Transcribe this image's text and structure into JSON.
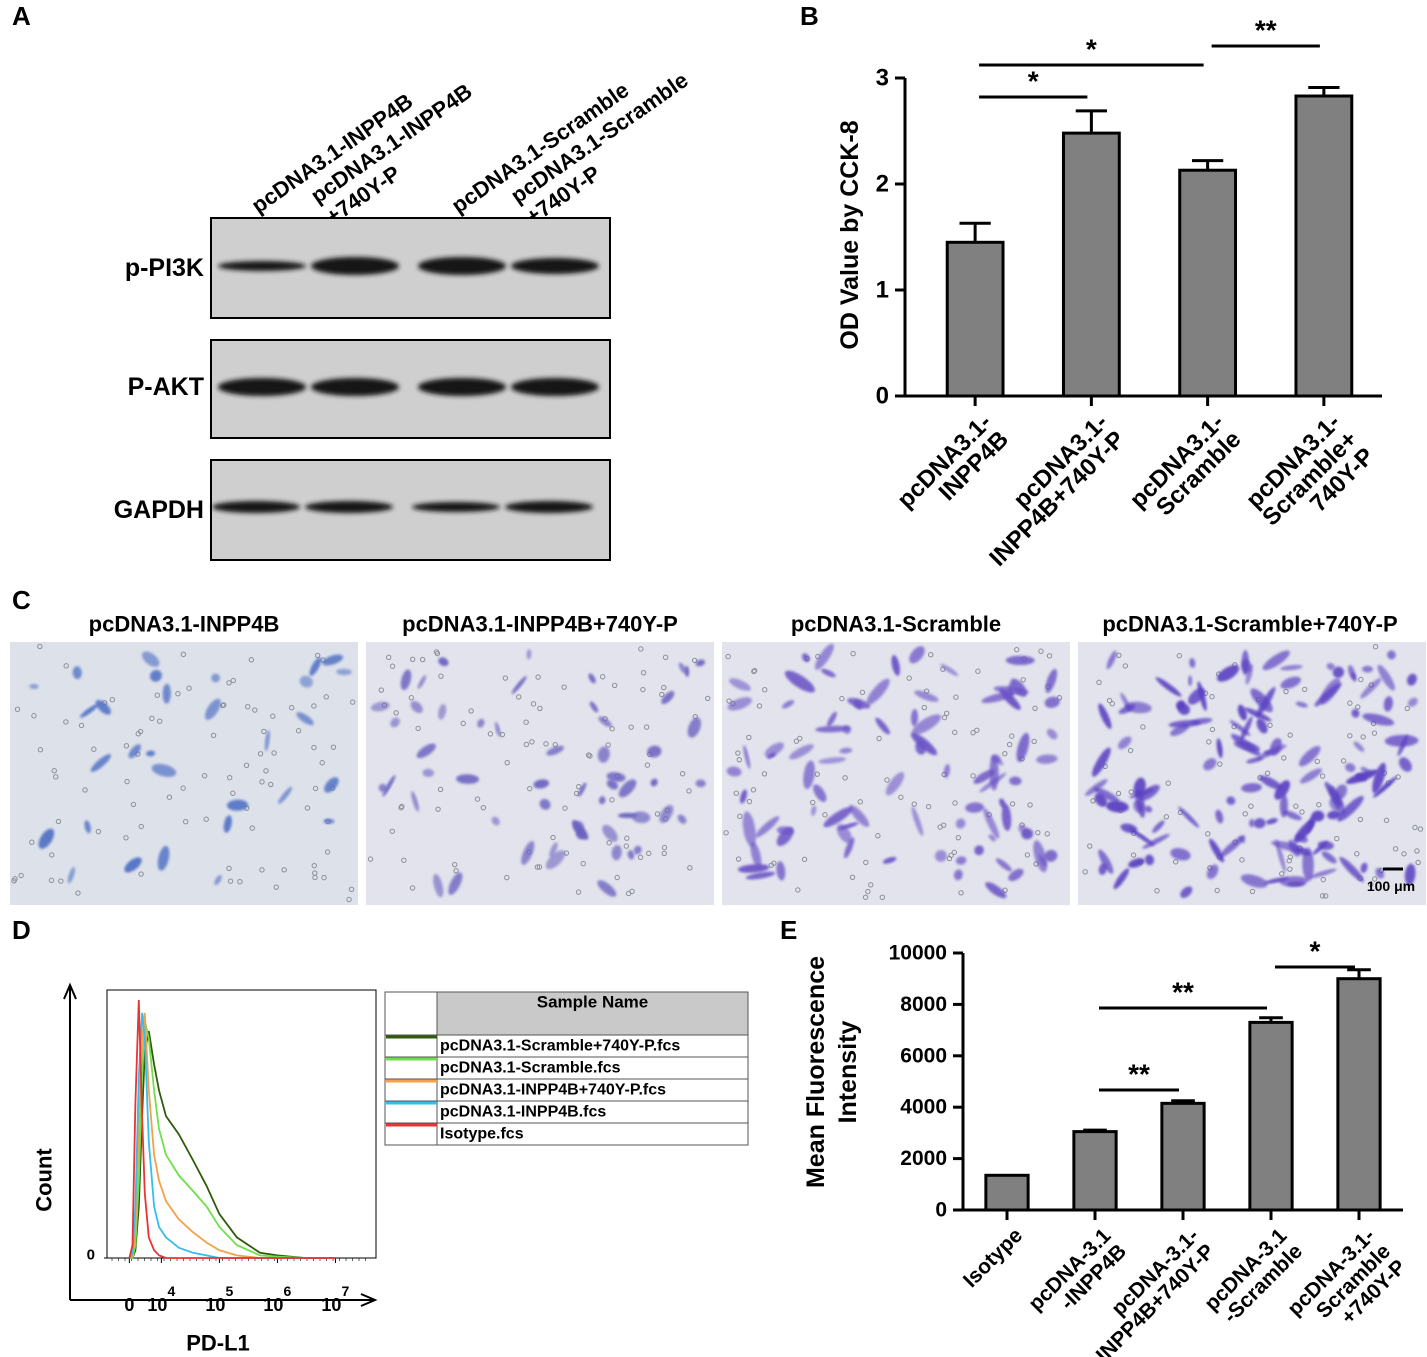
{
  "panel_labels": [
    "A",
    "B",
    "C",
    "D",
    "E"
  ],
  "blot": {
    "lanes": [
      "pcDNA3.1-INPP4B",
      "pcDNA3.1-INPP4B\n+740Y-P",
      "pcDNA3.1-Scramble",
      "pcDNA3.1-Scramble\n+740Y-P"
    ],
    "rows": [
      "p-PI3K",
      "P-AKT",
      "GAPDH"
    ]
  },
  "micrographs": {
    "titles": [
      "pcDNA3.1-INPP4B",
      "pcDNA3.1-INPP4B+740Y-P",
      "pcDNA3.1-Scramble",
      "pcDNA3.1-Scramble+740Y-P"
    ],
    "scale_bar": "100 μm"
  },
  "chart_data": [
    {
      "type": "bar",
      "y_label": "OD Value by CCK-8",
      "categories": [
        "pcDNA3.1-\nINPP4B",
        "pcDNA3.1-\nINPP4B+740Y-P",
        "pcDNA3.1-\nScramble",
        "pcDNA3.1-\nScramble+\n740Y-P"
      ],
      "values": [
        1.45,
        2.48,
        2.13,
        2.83
      ],
      "errors": [
        0.18,
        0.21,
        0.09,
        0.08
      ],
      "color": "#808080",
      "ylim": [
        0,
        3
      ],
      "yticks": [
        0,
        1,
        2,
        3
      ],
      "annotations": [
        {
          "text": "*",
          "from": 0,
          "to": 1
        },
        {
          "text": "*",
          "from": 0,
          "to": 2
        },
        {
          "text": "**",
          "from": 2,
          "to": 3
        }
      ]
    },
    {
      "type": "line",
      "x_label": "PD-L1",
      "y_label": "Count",
      "legend_title": "Sample Name",
      "x": [
        0,
        300,
        600,
        1000,
        1500,
        2000,
        3000,
        5000,
        8000,
        12000,
        20000,
        35000,
        60000,
        100000,
        200000,
        500000,
        1000000,
        3000000,
        10000000
      ],
      "series": [
        {
          "name": "pcDNA3.1-Scramble+740Y-P.fcs",
          "color": "#2e5b0c",
          "values": [
            0,
            0,
            3,
            20,
            55,
            80,
            88,
            75,
            65,
            55,
            48,
            38,
            28,
            17,
            8,
            2,
            1,
            0,
            0
          ]
        },
        {
          "name": "pcDNA3.1-Scramble.fcs",
          "color": "#6ee04a",
          "values": [
            0,
            0,
            5,
            30,
            70,
            92,
            85,
            65,
            50,
            40,
            32,
            26,
            20,
            12,
            5,
            1,
            0.5,
            0,
            0
          ]
        },
        {
          "name": "pcDNA3.1-INPP4B+740Y-P.fcs",
          "color": "#f2a24a",
          "values": [
            0,
            1,
            10,
            50,
            85,
            95,
            65,
            40,
            30,
            22,
            15,
            10,
            6,
            3,
            1,
            0,
            0,
            0,
            0
          ]
        },
        {
          "name": "pcDNA3.1-INPP4B.fcs",
          "color": "#35bdee",
          "values": [
            0,
            2,
            20,
            70,
            95,
            85,
            45,
            20,
            12,
            8,
            4,
            2,
            1,
            0,
            0,
            0,
            0,
            0,
            0
          ]
        },
        {
          "name": "Isotype.fcs",
          "color": "#e83434",
          "values": [
            0,
            5,
            60,
            100,
            55,
            25,
            8,
            3,
            1,
            0,
            0,
            0,
            0,
            0,
            0,
            0,
            0,
            0,
            0
          ]
        }
      ],
      "xlim": [
        -4000,
        50000000
      ],
      "xticks": [
        0,
        {
          "value": 10000,
          "label": "10",
          "exponent": "4"
        },
        {
          "value": 100000,
          "label": "10",
          "exponent": "5"
        },
        {
          "value": 1000000,
          "label": "10",
          "exponent": "6"
        },
        {
          "value": 10000000,
          "label": "10",
          "exponent": "7"
        }
      ],
      "ylim": [
        0,
        100
      ],
      "yticks": [
        0
      ]
    },
    {
      "type": "bar",
      "y_label": "Mean Fluorescence\nIntensity",
      "categories": [
        "Isotype",
        "pcDNA-3.1\n-INPP4B",
        "pcDNA-3.1-\nINPP4B+740Y-P",
        "pcDNA-3.1\n-Scramble",
        "pcDNA-3.1-\nScramble\n+740Y-P"
      ],
      "values": [
        1350,
        3050,
        4150,
        7300,
        9000
      ],
      "errors": [
        null,
        60,
        100,
        180,
        350
      ],
      "color": "#808080",
      "ylim": [
        0,
        10000
      ],
      "yticks": [
        0,
        2000,
        4000,
        6000,
        8000,
        10000
      ],
      "annotations": [
        {
          "text": "**",
          "from": 1,
          "to": 2
        },
        {
          "text": "**",
          "from": 1,
          "to": 3
        },
        {
          "text": "*",
          "from": 3,
          "to": 4
        }
      ]
    }
  ]
}
